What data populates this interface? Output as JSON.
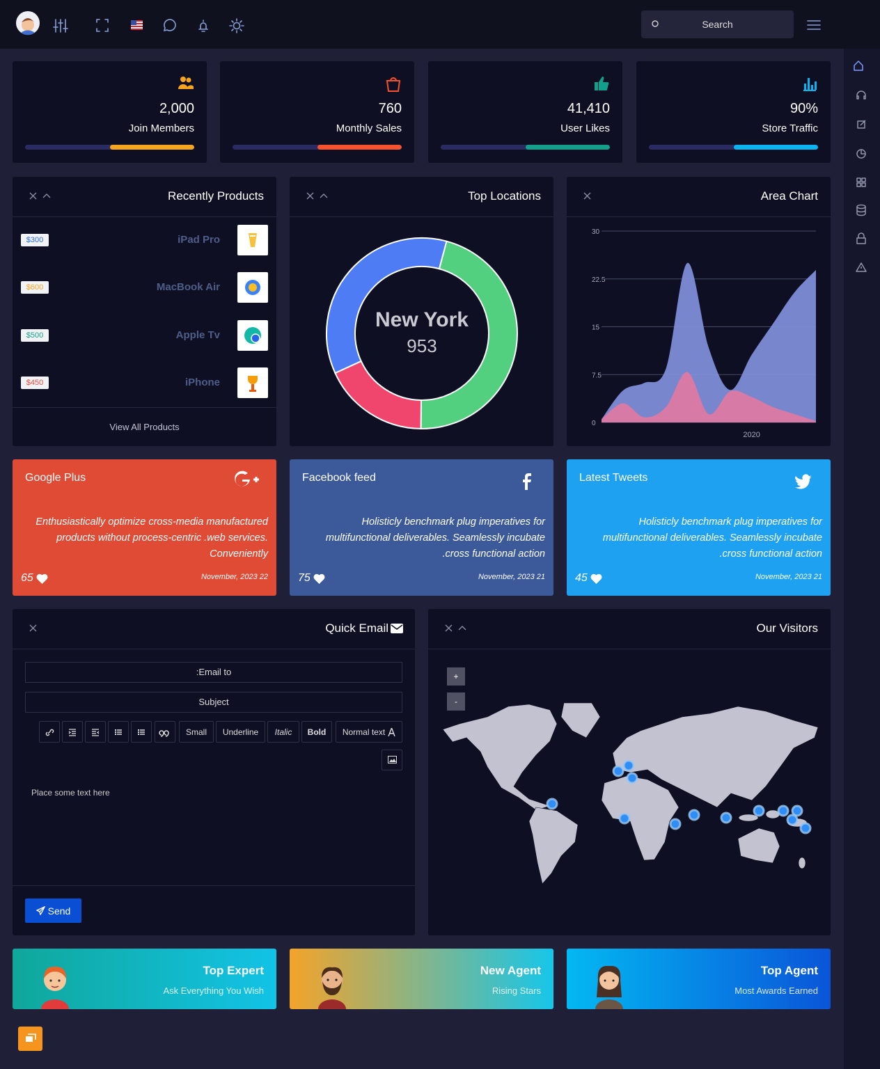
{
  "header": {
    "search": "Search"
  },
  "stats": [
    {
      "value": "2,000",
      "label": "Join Members"
    },
    {
      "value": "760",
      "label": "Monthly Sales"
    },
    {
      "value": "41,410",
      "label": "User Likes"
    },
    {
      "value": "90%",
      "label": "Store Traffic"
    }
  ],
  "products": {
    "title": "Recently Products",
    "items": [
      {
        "price": "$300",
        "name": "iPad Pro"
      },
      {
        "price": "$600",
        "name": "MacBook Air"
      },
      {
        "price": "$500",
        "name": "Apple Tv"
      },
      {
        "price": "$450",
        "name": "iPhone"
      }
    ],
    "footer": "View All Products"
  },
  "chart_data": [
    {
      "type": "pie",
      "title": "Top Locations",
      "center_label": "New York",
      "center_value": 953,
      "values": [
        46,
        18,
        36
      ],
      "colors": [
        "#52d07f",
        "#f0466e",
        "#4e7cf5"
      ]
    },
    {
      "type": "area",
      "title": "Area Chart",
      "categories": [
        null,
        null,
        null,
        null,
        null,
        null,
        null,
        "2020",
        null,
        null,
        null
      ],
      "series": [
        {
          "color": "#8190dc",
          "values": [
            0.5,
            5,
            6.2,
            8.4,
            25,
            11.7,
            5.1,
            10.6,
            15.5,
            20.4,
            23.9
          ]
        },
        {
          "color": "#e07aa3",
          "values": [
            0.5,
            3,
            0.8,
            2.4,
            7.9,
            1.3,
            4.9,
            4,
            2.4,
            1.3,
            0.2
          ]
        }
      ],
      "ylim": [
        0,
        30
      ],
      "yticks": [
        0,
        7.5,
        15,
        22.5,
        30
      ],
      "grid": true
    }
  ],
  "social": [
    {
      "title": "Google Plus",
      "text": "Enthusiastically optimize cross-media manufactured products without process-centric .web services. Conveniently",
      "likes": 65,
      "date": "November, 2023 22"
    },
    {
      "title": "Facebook feed",
      "text": "Holisticly benchmark plug imperatives for multifunctional deliverables. Seamlessly incubate .cross functional action",
      "likes": 75,
      "date": "November, 2023 21"
    },
    {
      "title": "Latest Tweets",
      "text": "Holisticly benchmark plug imperatives for multifunctional deliverables. Seamlessly incubate .cross functional action",
      "likes": 45,
      "date": "November, 2023 21"
    }
  ],
  "email": {
    "title": "Quick Email",
    "to": ":Email to",
    "subject": "Subject",
    "tools": [
      "Small",
      "Underline",
      "Italic",
      "Bold",
      "Normal text"
    ],
    "body": "Place some text here",
    "send": "Send"
  },
  "visitors": {
    "title": "Our Visitors",
    "zoom_in": "+",
    "zoom_out": "-"
  },
  "promos": [
    {
      "title": "Top Expert",
      "subtitle": "Ask Everything You Wish"
    },
    {
      "title": "New Agent",
      "subtitle": "Rising Stars"
    },
    {
      "title": "Top Agent",
      "subtitle": "Most Awards Earned"
    }
  ]
}
